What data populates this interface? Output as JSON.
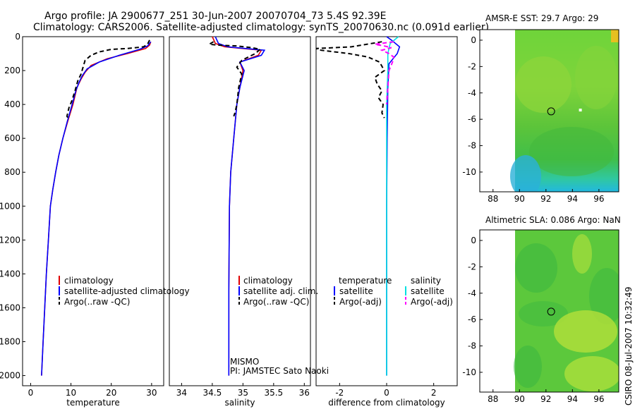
{
  "title": {
    "line1": "Argo profile: JA 2900677_251 30-Jun-2007 20070704_73 5.4S 92.39E",
    "line2": "Climatology: CARS2006. Satellite-adjusted climatology: synTS_20070630.nc (0.091d earlier)"
  },
  "side_stamp": "CSIRO 08-Jul-2007 10:32:49",
  "colors": {
    "climatology": "#e00000",
    "satellite": "#0000ff",
    "argo": "#000000",
    "salinity_sat": "#00e0e0",
    "salinity_argo": "#ff00ff"
  },
  "chart_data": [
    {
      "id": "temperature",
      "type": "line",
      "xlabel": "temperature",
      "ylabel": "",
      "xlim": [
        -2,
        33
      ],
      "ylim": [
        2060,
        0
      ],
      "xticks": [
        0,
        10,
        20,
        30
      ],
      "xtick_labels": [
        "0",
        "10",
        "20",
        "30"
      ],
      "yticks": [
        0,
        200,
        400,
        600,
        800,
        1000,
        1200,
        1400,
        1600,
        1800,
        2000
      ],
      "ytick_labels": [
        "0",
        "200",
        "400",
        "600",
        "800",
        "1000",
        "1200",
        "1400",
        "1600",
        "1800",
        "2000"
      ],
      "legend": [
        "climatology",
        "satellite-adjusted climatology",
        "Argo(..raw -QC)"
      ],
      "series": [
        {
          "name": "climatology",
          "color": "#e00000",
          "dash": "",
          "points": [
            [
              29.8,
              30
            ],
            [
              29.5,
              50
            ],
            [
              28.5,
              70
            ],
            [
              24,
              100
            ],
            [
              19,
              130
            ],
            [
              15,
              170
            ],
            [
              13.5,
              210
            ],
            [
              12.5,
              250
            ],
            [
              11.5,
              300
            ],
            [
              10.5,
              400
            ],
            [
              9.2,
              500
            ],
            [
              8,
              600
            ],
            [
              7,
              700
            ],
            [
              6.2,
              800
            ],
            [
              5.5,
              900
            ],
            [
              4.9,
              1000
            ],
            [
              4.4,
              1200
            ],
            [
              3.9,
              1400
            ],
            [
              3.5,
              1600
            ],
            [
              3.1,
              1800
            ],
            [
              2.7,
              2000
            ]
          ]
        },
        {
          "name": "satellite",
          "color": "#0000ff",
          "dash": "",
          "points": [
            [
              29.8,
              30
            ],
            [
              29,
              55
            ],
            [
              27,
              75
            ],
            [
              22,
              110
            ],
            [
              17,
              150
            ],
            [
              14,
              190
            ],
            [
              12.8,
              230
            ],
            [
              12,
              270
            ],
            [
              11.2,
              320
            ],
            [
              10.3,
              400
            ],
            [
              9.1,
              500
            ],
            [
              8,
              600
            ],
            [
              7,
              700
            ],
            [
              6.2,
              800
            ],
            [
              5.5,
              900
            ],
            [
              4.9,
              1000
            ],
            [
              4.4,
              1200
            ],
            [
              3.9,
              1400
            ],
            [
              3.5,
              1600
            ],
            [
              3.1,
              1800
            ],
            [
              2.7,
              2000
            ]
          ]
        },
        {
          "name": "argo",
          "color": "#000000",
          "dash": "6,4",
          "points": [
            [
              29.5,
              20
            ],
            [
              29,
              45
            ],
            [
              28,
              60
            ],
            [
              24,
              70
            ],
            [
              20,
              75
            ],
            [
              17,
              90
            ],
            [
              15,
              110
            ],
            [
              13.5,
              140
            ],
            [
              13,
              180
            ],
            [
              12.5,
              220
            ],
            [
              11.7,
              260
            ],
            [
              11,
              320
            ],
            [
              10.2,
              380
            ],
            [
              9.5,
              420
            ],
            [
              9,
              470
            ],
            [
              9.3,
              480
            ]
          ]
        }
      ]
    },
    {
      "id": "salinity",
      "type": "line",
      "xlabel": "salinity",
      "ylabel": "",
      "xlim": [
        33.8,
        36.1
      ],
      "ylim": [
        2060,
        0
      ],
      "xticks": [
        34,
        34.5,
        35,
        35.5,
        36
      ],
      "xtick_labels": [
        "34",
        "34.5",
        "35",
        "35.5",
        "36"
      ],
      "yticks": [],
      "ytick_labels": [],
      "legend": [
        "climatology",
        "satellite adj. clim.",
        "Argo(..raw -QC)"
      ],
      "annotation": [
        "MISMO",
        "PI: JAMSTEC Sato Naoki"
      ],
      "series": [
        {
          "name": "climatology",
          "color": "#e00000",
          "dash": "",
          "points": [
            [
              34.5,
              0
            ],
            [
              34.55,
              40
            ],
            [
              34.7,
              60
            ],
            [
              35,
              70
            ],
            [
              35.3,
              80
            ],
            [
              35.25,
              110
            ],
            [
              34.95,
              150
            ],
            [
              35,
              200
            ],
            [
              34.95,
              300
            ],
            [
              34.9,
              400
            ],
            [
              34.85,
              600
            ],
            [
              34.8,
              800
            ],
            [
              34.78,
              1000
            ],
            [
              34.77,
              1500
            ],
            [
              34.77,
              2000
            ]
          ]
        },
        {
          "name": "satellite",
          "color": "#0000ff",
          "dash": "",
          "points": [
            [
              34.55,
              0
            ],
            [
              34.6,
              40
            ],
            [
              34.75,
              60
            ],
            [
              35.05,
              70
            ],
            [
              35.35,
              80
            ],
            [
              35.3,
              110
            ],
            [
              34.95,
              150
            ],
            [
              35.02,
              200
            ],
            [
              34.95,
              300
            ],
            [
              34.9,
              400
            ],
            [
              34.85,
              600
            ],
            [
              34.8,
              800
            ],
            [
              34.78,
              1000
            ],
            [
              34.77,
              1500
            ],
            [
              34.77,
              2000
            ]
          ]
        },
        {
          "name": "argo",
          "color": "#000000",
          "dash": "6,4",
          "points": [
            [
              34.52,
              30
            ],
            [
              34.45,
              45
            ],
            [
              34.6,
              50
            ],
            [
              34.9,
              55
            ],
            [
              35.15,
              65
            ],
            [
              35.28,
              75
            ],
            [
              35.2,
              100
            ],
            [
              34.98,
              140
            ],
            [
              34.9,
              180
            ],
            [
              34.98,
              220
            ],
            [
              34.93,
              300
            ],
            [
              34.9,
              400
            ],
            [
              34.87,
              450
            ],
            [
              34.85,
              470
            ]
          ]
        }
      ]
    },
    {
      "id": "difference",
      "type": "line",
      "xlabel": "difference from climatology",
      "ylabel": "",
      "xlim": [
        -3,
        3
      ],
      "ylim": [
        2060,
        0
      ],
      "xticks": [
        -2,
        0,
        2
      ],
      "xtick_labels": [
        "-2",
        "0",
        "2"
      ],
      "yticks": [],
      "ytick_labels": [],
      "legend_left_title": "temperature",
      "legend_right_title": "salinity",
      "legend": [
        "satellite",
        "Argo(-adj)",
        "satellite",
        "Argo(-adj)"
      ],
      "series": [
        {
          "name": "temp satellite",
          "color": "#0000ff",
          "dash": "",
          "points": [
            [
              0,
              0
            ],
            [
              0.2,
              20
            ],
            [
              0.55,
              60
            ],
            [
              0.45,
              100
            ],
            [
              0.1,
              160
            ],
            [
              0.05,
              300
            ],
            [
              0.02,
              600
            ],
            [
              0,
              1000
            ],
            [
              0,
              2000
            ]
          ]
        },
        {
          "name": "temp argo",
          "color": "#000000",
          "dash": "6,4",
          "points": [
            [
              -0.2,
              30
            ],
            [
              -1.5,
              60
            ],
            [
              -3,
              70
            ],
            [
              -2.8,
              80
            ],
            [
              -1.6,
              100
            ],
            [
              -0.8,
              120
            ],
            [
              -0.3,
              150
            ],
            [
              -0.1,
              200
            ],
            [
              -0.5,
              240
            ],
            [
              -0.4,
              280
            ],
            [
              -0.2,
              320
            ],
            [
              -0.35,
              360
            ],
            [
              -0.15,
              400
            ],
            [
              -0.2,
              450
            ],
            [
              -0.1,
              480
            ]
          ]
        },
        {
          "name": "sal satellite",
          "color": "#00e0e0",
          "dash": "",
          "points": [
            [
              0.5,
              0
            ],
            [
              0.15,
              40
            ],
            [
              0.05,
              100
            ],
            [
              0.05,
              200
            ],
            [
              0,
              400
            ],
            [
              0,
              1000
            ],
            [
              0,
              2000
            ]
          ]
        },
        {
          "name": "sal argo",
          "color": "#ff00ff",
          "dash": "6,4",
          "points": [
            [
              0.3,
              30
            ],
            [
              -0.5,
              45
            ],
            [
              -0.1,
              55
            ],
            [
              0.2,
              65
            ],
            [
              -0.2,
              80
            ],
            [
              0.1,
              100
            ],
            [
              0.3,
              120
            ],
            [
              0.25,
              150
            ],
            [
              0.1,
              200
            ],
            [
              0.05,
              300
            ],
            [
              0,
              400
            ]
          ]
        }
      ]
    },
    {
      "id": "sst_map",
      "type": "heatmap",
      "title": "AMSR-E SST: 29.7 Argo: 29",
      "xlim": [
        87,
        97.5
      ],
      "ylim": [
        -11.5,
        0.8
      ],
      "xticks": [
        88,
        90,
        92,
        94,
        96
      ],
      "xtick_labels": [
        "88",
        "90",
        "92",
        "94",
        "96"
      ],
      "yticks": [
        0,
        -2,
        -4,
        -6,
        -8,
        -10
      ],
      "ytick_labels": [
        "0",
        "-2",
        "-4",
        "-6",
        "-8",
        "-10"
      ],
      "data_lon_range": [
        90,
        97.5
      ],
      "argo_position": [
        92.39,
        -5.4
      ],
      "other_point": [
        94.6,
        -5.3
      ]
    },
    {
      "id": "sla_map",
      "type": "heatmap",
      "title": "Altimetric SLA: 0.086 Argo: NaN",
      "xlim": [
        87,
        97.5
      ],
      "ylim": [
        -11.5,
        0.8
      ],
      "xticks": [
        88,
        90,
        92,
        94,
        96
      ],
      "xtick_labels": [
        "88",
        "90",
        "92",
        "94",
        "96"
      ],
      "yticks": [
        0,
        -2,
        -4,
        -6,
        -8,
        -10
      ],
      "ytick_labels": [
        "0",
        "-2",
        "-4",
        "-6",
        "-8",
        "-10"
      ],
      "data_lon_range": [
        90,
        97.5
      ],
      "argo_position": [
        92.39,
        -5.4
      ]
    }
  ]
}
